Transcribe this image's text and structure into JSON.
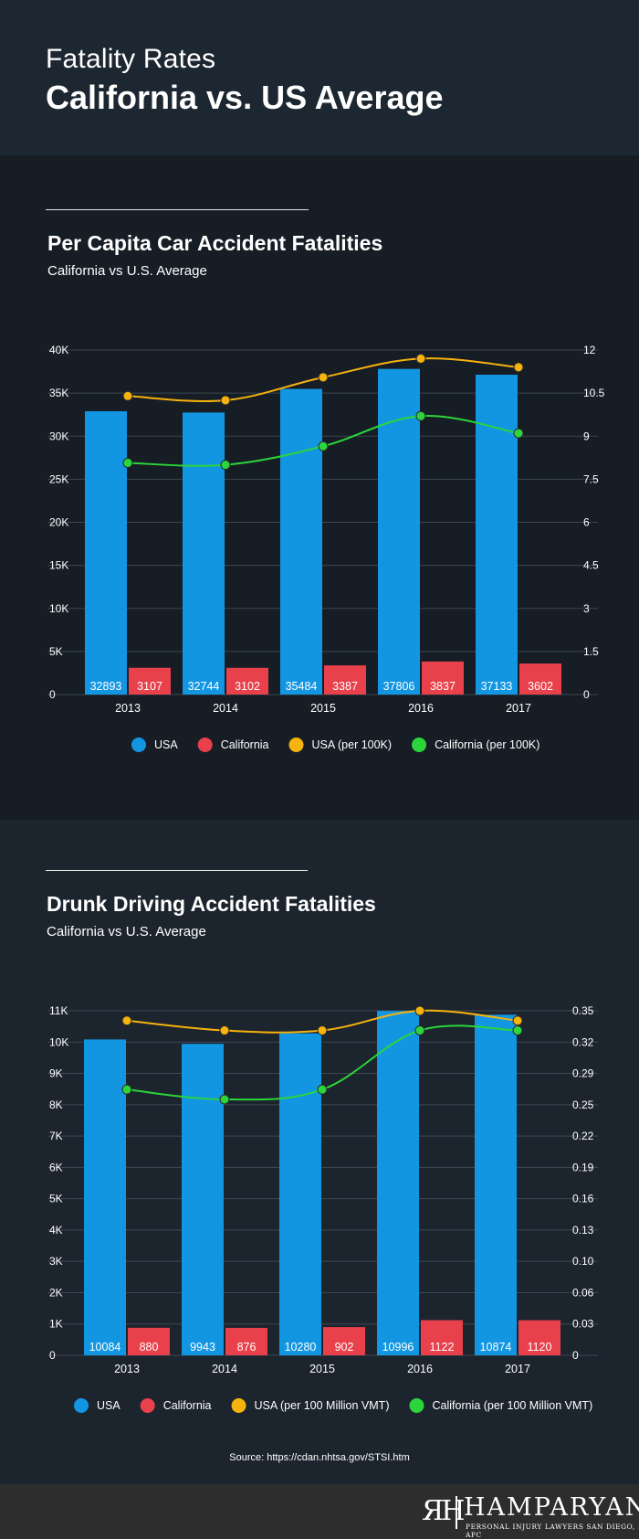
{
  "header": {
    "title_line1": "Fatality Rates",
    "title_line2": "California vs. US Average"
  },
  "charts": {
    "per_capita": {
      "title": "Per Capita Car Accident Fatalities",
      "subtitle": "California vs U.S. Average"
    },
    "drunk": {
      "title": "Drunk Driving Accident Fatalities",
      "subtitle": "California vs U.S. Average"
    }
  },
  "chart_data": [
    {
      "type": "bar",
      "title": "Per Capita Car Accident Fatalities",
      "categories": [
        "2013",
        "2014",
        "2015",
        "2016",
        "2017"
      ],
      "ylim": [
        0,
        40000
      ],
      "y_ticks": [
        "0",
        "5K",
        "10K",
        "15K",
        "20K",
        "25K",
        "30K",
        "35K",
        "40K"
      ],
      "y2lim": [
        0,
        12
      ],
      "y2_ticks": [
        "0",
        "1.5",
        "3",
        "4.5",
        "6",
        "7.5",
        "9",
        "10.5",
        "12"
      ],
      "series": [
        {
          "name": "USA",
          "kind": "bar",
          "axis": "left",
          "color": "#1396e2",
          "values": [
            32893,
            32744,
            35484,
            37806,
            37133
          ]
        },
        {
          "name": "California",
          "kind": "bar",
          "axis": "left",
          "color": "#e8414c",
          "values": [
            3107,
            3102,
            3387,
            3837,
            3602
          ]
        },
        {
          "name": "USA (per 100K)",
          "kind": "line",
          "axis": "right",
          "color": "#f6b20d",
          "values": [
            10.4,
            10.25,
            11.05,
            11.7,
            11.4
          ]
        },
        {
          "name": "California (per 100K)",
          "kind": "line",
          "axis": "right",
          "color": "#2bd53b",
          "values": [
            8.07,
            8.0,
            8.65,
            9.7,
            9.1
          ]
        }
      ]
    },
    {
      "type": "bar",
      "title": "Drunk Driving Accident Fatalities",
      "categories": [
        "2013",
        "2014",
        "2015",
        "2016",
        "2017"
      ],
      "ylim": [
        0,
        11000
      ],
      "y_ticks": [
        "0",
        "1K",
        "2K",
        "3K",
        "4K",
        "5K",
        "6K",
        "7K",
        "8K",
        "9K",
        "10K",
        "11K"
      ],
      "y2lim": [
        0,
        0.35
      ],
      "y2_ticks": [
        "0",
        "0.03",
        "0.06",
        "0.10",
        "0.13",
        "0.16",
        "0.19",
        "0.22",
        "0.25",
        "0.29",
        "0.32",
        "0.35"
      ],
      "series": [
        {
          "name": "USA",
          "kind": "bar",
          "axis": "left",
          "color": "#1396e2",
          "values": [
            10084,
            9943,
            10280,
            10996,
            10874
          ]
        },
        {
          "name": "California",
          "kind": "bar",
          "axis": "left",
          "color": "#e8414c",
          "values": [
            880,
            876,
            902,
            1122,
            1120
          ]
        },
        {
          "name": "USA (per 100 Million VMT)",
          "kind": "line",
          "axis": "right",
          "color": "#f6b20d",
          "values": [
            0.34,
            0.33,
            0.33,
            0.35,
            0.34
          ]
        },
        {
          "name": "California (per 100 Million VMT)",
          "kind": "line",
          "axis": "right",
          "color": "#2bd53b",
          "values": [
            0.27,
            0.26,
            0.27,
            0.33,
            0.33
          ]
        }
      ]
    }
  ],
  "source": "Source: https://cdan.nhtsa.gov/STSI.htm",
  "footer": {
    "logo_mark": "ЯH",
    "logo_name": "HAMPARYAN",
    "logo_tagline": "PERSONAL INJURY LAWYERS SAN DIEGO, APC"
  }
}
